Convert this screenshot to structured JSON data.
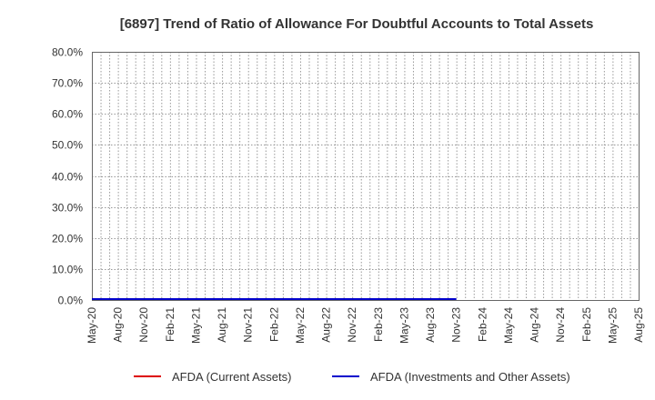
{
  "chart_data": {
    "type": "line",
    "title": "[6897]  Trend of Ratio of Allowance For Doubtful Accounts to Total Assets",
    "xlabel": "",
    "ylabel": "",
    "ylim": [
      0,
      80
    ],
    "y_ticks": [
      "0.0%",
      "10.0%",
      "20.0%",
      "30.0%",
      "40.0%",
      "50.0%",
      "60.0%",
      "70.0%",
      "80.0%"
    ],
    "x_tick_labels": [
      "May-20",
      "Aug-20",
      "Nov-20",
      "Feb-21",
      "May-21",
      "Aug-21",
      "Nov-21",
      "Feb-22",
      "May-22",
      "Aug-22",
      "Nov-22",
      "Feb-23",
      "May-23",
      "Aug-23",
      "Nov-23",
      "Feb-24",
      "May-24",
      "Aug-24",
      "Nov-24",
      "Feb-25",
      "May-25",
      "Aug-25"
    ],
    "grid": true,
    "legend_position": "bottom",
    "series": [
      {
        "name": "AFDA (Current Assets)",
        "color": "#dd0000",
        "x": [],
        "values": []
      },
      {
        "name": "AFDA (Investments and Other Assets)",
        "color": "#0000cc",
        "x": [
          "May-20",
          "Aug-20",
          "Nov-20",
          "Feb-21",
          "May-21",
          "Aug-21",
          "Nov-21",
          "Feb-22",
          "May-22",
          "Aug-22",
          "Nov-22",
          "Feb-23",
          "May-23",
          "Aug-23",
          "Nov-23"
        ],
        "values": [
          0.3,
          0.3,
          0.3,
          0.3,
          0.3,
          0.3,
          0.3,
          0.3,
          0.3,
          0.3,
          0.3,
          0.3,
          0.3,
          0.3,
          0.3
        ]
      }
    ]
  }
}
